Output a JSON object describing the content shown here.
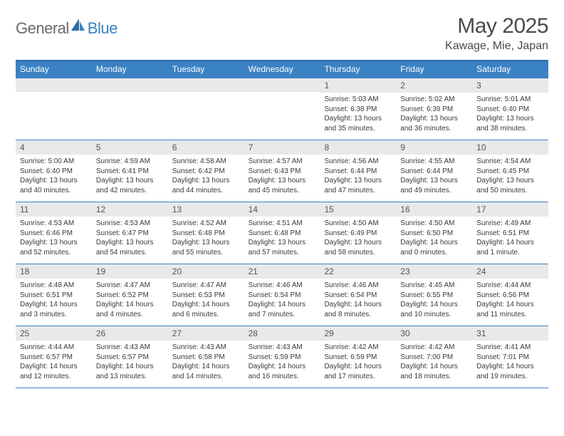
{
  "brand": {
    "part1": "General",
    "part2": "Blue"
  },
  "title": "May 2025",
  "location": "Kawage, Mie, Japan",
  "colors": {
    "header_bg": "#3b82c4",
    "header_border": "#2f6aa3",
    "row_border": "#3b7fc4",
    "daynum_bg": "#e9e9e9",
    "text_dark": "#4a4a4a",
    "text_body": "#3a3a3a",
    "logo_gray": "#6a6a6a",
    "logo_blue": "#3b7fc4"
  },
  "weekdays": [
    "Sunday",
    "Monday",
    "Tuesday",
    "Wednesday",
    "Thursday",
    "Friday",
    "Saturday"
  ],
  "weeks": [
    [
      {
        "n": "",
        "sr": "",
        "ss": "",
        "dl": ""
      },
      {
        "n": "",
        "sr": "",
        "ss": "",
        "dl": ""
      },
      {
        "n": "",
        "sr": "",
        "ss": "",
        "dl": ""
      },
      {
        "n": "",
        "sr": "",
        "ss": "",
        "dl": ""
      },
      {
        "n": "1",
        "sr": "Sunrise: 5:03 AM",
        "ss": "Sunset: 6:38 PM",
        "dl": "Daylight: 13 hours and 35 minutes."
      },
      {
        "n": "2",
        "sr": "Sunrise: 5:02 AM",
        "ss": "Sunset: 6:39 PM",
        "dl": "Daylight: 13 hours and 36 minutes."
      },
      {
        "n": "3",
        "sr": "Sunrise: 5:01 AM",
        "ss": "Sunset: 6:40 PM",
        "dl": "Daylight: 13 hours and 38 minutes."
      }
    ],
    [
      {
        "n": "4",
        "sr": "Sunrise: 5:00 AM",
        "ss": "Sunset: 6:40 PM",
        "dl": "Daylight: 13 hours and 40 minutes."
      },
      {
        "n": "5",
        "sr": "Sunrise: 4:59 AM",
        "ss": "Sunset: 6:41 PM",
        "dl": "Daylight: 13 hours and 42 minutes."
      },
      {
        "n": "6",
        "sr": "Sunrise: 4:58 AM",
        "ss": "Sunset: 6:42 PM",
        "dl": "Daylight: 13 hours and 44 minutes."
      },
      {
        "n": "7",
        "sr": "Sunrise: 4:57 AM",
        "ss": "Sunset: 6:43 PM",
        "dl": "Daylight: 13 hours and 45 minutes."
      },
      {
        "n": "8",
        "sr": "Sunrise: 4:56 AM",
        "ss": "Sunset: 6:44 PM",
        "dl": "Daylight: 13 hours and 47 minutes."
      },
      {
        "n": "9",
        "sr": "Sunrise: 4:55 AM",
        "ss": "Sunset: 6:44 PM",
        "dl": "Daylight: 13 hours and 49 minutes."
      },
      {
        "n": "10",
        "sr": "Sunrise: 4:54 AM",
        "ss": "Sunset: 6:45 PM",
        "dl": "Daylight: 13 hours and 50 minutes."
      }
    ],
    [
      {
        "n": "11",
        "sr": "Sunrise: 4:53 AM",
        "ss": "Sunset: 6:46 PM",
        "dl": "Daylight: 13 hours and 52 minutes."
      },
      {
        "n": "12",
        "sr": "Sunrise: 4:53 AM",
        "ss": "Sunset: 6:47 PM",
        "dl": "Daylight: 13 hours and 54 minutes."
      },
      {
        "n": "13",
        "sr": "Sunrise: 4:52 AM",
        "ss": "Sunset: 6:48 PM",
        "dl": "Daylight: 13 hours and 55 minutes."
      },
      {
        "n": "14",
        "sr": "Sunrise: 4:51 AM",
        "ss": "Sunset: 6:48 PM",
        "dl": "Daylight: 13 hours and 57 minutes."
      },
      {
        "n": "15",
        "sr": "Sunrise: 4:50 AM",
        "ss": "Sunset: 6:49 PM",
        "dl": "Daylight: 13 hours and 58 minutes."
      },
      {
        "n": "16",
        "sr": "Sunrise: 4:50 AM",
        "ss": "Sunset: 6:50 PM",
        "dl": "Daylight: 14 hours and 0 minutes."
      },
      {
        "n": "17",
        "sr": "Sunrise: 4:49 AM",
        "ss": "Sunset: 6:51 PM",
        "dl": "Daylight: 14 hours and 1 minute."
      }
    ],
    [
      {
        "n": "18",
        "sr": "Sunrise: 4:48 AM",
        "ss": "Sunset: 6:51 PM",
        "dl": "Daylight: 14 hours and 3 minutes."
      },
      {
        "n": "19",
        "sr": "Sunrise: 4:47 AM",
        "ss": "Sunset: 6:52 PM",
        "dl": "Daylight: 14 hours and 4 minutes."
      },
      {
        "n": "20",
        "sr": "Sunrise: 4:47 AM",
        "ss": "Sunset: 6:53 PM",
        "dl": "Daylight: 14 hours and 6 minutes."
      },
      {
        "n": "21",
        "sr": "Sunrise: 4:46 AM",
        "ss": "Sunset: 6:54 PM",
        "dl": "Daylight: 14 hours and 7 minutes."
      },
      {
        "n": "22",
        "sr": "Sunrise: 4:46 AM",
        "ss": "Sunset: 6:54 PM",
        "dl": "Daylight: 14 hours and 8 minutes."
      },
      {
        "n": "23",
        "sr": "Sunrise: 4:45 AM",
        "ss": "Sunset: 6:55 PM",
        "dl": "Daylight: 14 hours and 10 minutes."
      },
      {
        "n": "24",
        "sr": "Sunrise: 4:44 AM",
        "ss": "Sunset: 6:56 PM",
        "dl": "Daylight: 14 hours and 11 minutes."
      }
    ],
    [
      {
        "n": "25",
        "sr": "Sunrise: 4:44 AM",
        "ss": "Sunset: 6:57 PM",
        "dl": "Daylight: 14 hours and 12 minutes."
      },
      {
        "n": "26",
        "sr": "Sunrise: 4:43 AM",
        "ss": "Sunset: 6:57 PM",
        "dl": "Daylight: 14 hours and 13 minutes."
      },
      {
        "n": "27",
        "sr": "Sunrise: 4:43 AM",
        "ss": "Sunset: 6:58 PM",
        "dl": "Daylight: 14 hours and 14 minutes."
      },
      {
        "n": "28",
        "sr": "Sunrise: 4:43 AM",
        "ss": "Sunset: 6:59 PM",
        "dl": "Daylight: 14 hours and 16 minutes."
      },
      {
        "n": "29",
        "sr": "Sunrise: 4:42 AM",
        "ss": "Sunset: 6:59 PM",
        "dl": "Daylight: 14 hours and 17 minutes."
      },
      {
        "n": "30",
        "sr": "Sunrise: 4:42 AM",
        "ss": "Sunset: 7:00 PM",
        "dl": "Daylight: 14 hours and 18 minutes."
      },
      {
        "n": "31",
        "sr": "Sunrise: 4:41 AM",
        "ss": "Sunset: 7:01 PM",
        "dl": "Daylight: 14 hours and 19 minutes."
      }
    ]
  ]
}
